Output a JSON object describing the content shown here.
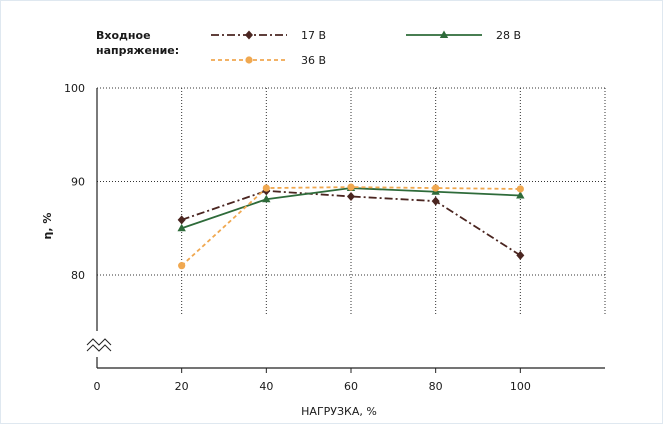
{
  "chart_data": {
    "type": "line",
    "xlabel": "НАГРУЗКА, %",
    "ylabel": "η, %",
    "legend_title_line1": "Входное",
    "legend_title_line2": "напряжение:",
    "x_ticks": [
      "0",
      "20",
      "40",
      "60",
      "80",
      "100"
    ],
    "y_ticks": [
      "80",
      "90",
      "100"
    ],
    "xlim": [
      0,
      120
    ],
    "ylim": [
      70,
      100
    ],
    "axis_break": true,
    "grid": true,
    "legend_position": "top",
    "x": [
      20,
      40,
      60,
      80,
      100
    ],
    "series": [
      {
        "name": "17 В",
        "values": [
          85.9,
          89.0,
          88.4,
          87.9,
          82.1
        ],
        "color": "#4a2520",
        "dash": "8,3,2,3",
        "marker": "diamond"
      },
      {
        "name": "28 В",
        "values": [
          85.0,
          88.1,
          89.3,
          88.9,
          88.5
        ],
        "color": "#2e6b3a",
        "dash": "",
        "marker": "triangle"
      },
      {
        "name": "36 В",
        "values": [
          81.0,
          89.3,
          89.4,
          89.3,
          89.2
        ],
        "color": "#f0a850",
        "dash": "4,3",
        "marker": "circle"
      }
    ]
  }
}
